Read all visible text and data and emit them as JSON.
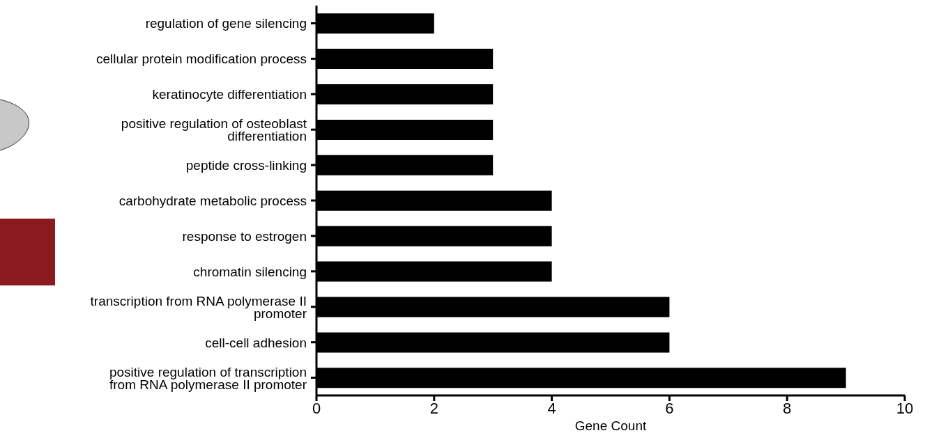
{
  "chart_data": {
    "type": "bar",
    "orientation": "horizontal",
    "xlabel": "Gene Count",
    "categories": [
      "regulation of gene silencing",
      "cellular protein modification process",
      "keratinocyte differentiation",
      "positive regulation of osteoblast differentiation",
      "peptide cross-linking",
      "carbohydrate metabolic process",
      "response to estrogen",
      "chromatin silencing",
      "transcription from RNA polymerase II promoter",
      "cell-cell adhesion",
      "positive regulation of transcription from RNA polymerase II promoter"
    ],
    "values": [
      2,
      3,
      3,
      3,
      3,
      4,
      4,
      4,
      6,
      6,
      9
    ],
    "color": "#000000",
    "xlim": [
      0,
      10
    ],
    "xticks": [
      0,
      2,
      4,
      6,
      8,
      10
    ],
    "grid": false,
    "legend": false
  }
}
